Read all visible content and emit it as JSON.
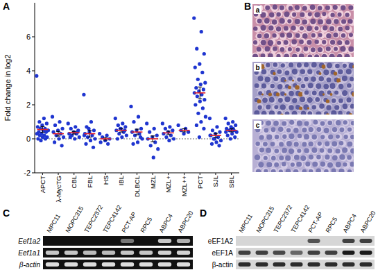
{
  "chart_data": {
    "type": "scatter",
    "panel_label": "A",
    "y_label": "Fold change in log2",
    "categories": [
      "APCT",
      "λ-MycTG",
      "CBL",
      "FBL",
      "HS",
      "IBL",
      "DLBCL",
      "MZL",
      "MZL+",
      "MZL++",
      "PCT",
      "SJL",
      "SBL"
    ],
    "values": [
      [
        3.7,
        1.2,
        1.0,
        0.9,
        0.8,
        0.7,
        0.6,
        0.6,
        0.5,
        0.5,
        0.4,
        0.4,
        0.3,
        0.3,
        0.2,
        0.2,
        0.1,
        0.1,
        0.0,
        0.0,
        -0.1,
        0.5
      ],
      [
        1.3,
        1.0,
        0.8,
        0.6,
        0.5,
        0.4,
        0.3,
        0.2,
        0.1,
        0.0,
        -0.2,
        -0.4
      ],
      [
        0.9,
        0.7,
        0.6,
        0.5,
        0.4,
        0.3,
        0.3,
        0.2,
        0.1,
        0.0,
        0.1,
        0.4
      ],
      [
        2.6,
        1.0,
        0.7,
        0.5,
        0.4,
        0.3,
        0.2,
        0.1,
        0.0,
        -0.1,
        -0.3,
        -0.5,
        0.6,
        0.2
      ],
      [
        0.3,
        0.2,
        0.1,
        0.0,
        -0.1,
        -0.2,
        -0.3
      ],
      [
        1.2,
        0.9,
        0.8,
        0.7,
        0.6,
        0.5,
        0.4,
        0.3,
        0.2,
        0.1,
        0.0,
        0.5,
        0.6
      ],
      [
        1.9,
        1.3,
        1.0,
        0.6,
        0.5,
        0.4,
        0.3,
        0.2,
        0.0,
        -0.2,
        -0.3,
        0.1
      ],
      [
        0.9,
        0.6,
        0.4,
        0.2,
        0.1,
        0.0,
        -0.2,
        -0.4,
        -0.6,
        -1.1
      ],
      [
        0.9,
        0.7,
        0.6,
        0.5,
        0.4,
        0.3,
        0.2,
        0.1,
        0.0,
        -0.1
      ],
      [
        0.8,
        0.6,
        0.5,
        0.4,
        0.3
      ],
      [
        7.1,
        6.3,
        5.3,
        5.0,
        4.4,
        4.2,
        3.9,
        3.5,
        3.3,
        3.2,
        3.0,
        2.9,
        2.8,
        2.7,
        2.6,
        2.5,
        2.3,
        2.2,
        2.0,
        1.8,
        1.5,
        1.3,
        1.0,
        0.8,
        0.6,
        0.1
      ],
      [
        1.2,
        0.7,
        0.5,
        0.4,
        0.3,
        0.2,
        0.1,
        0.0,
        -0.1,
        -0.2,
        -0.3,
        -0.4,
        0.0,
        0.2
      ],
      [
        1.2,
        1.0,
        0.9,
        0.8,
        0.7,
        0.6,
        0.5,
        0.5,
        0.4,
        0.3,
        0.2,
        0.1,
        0.0,
        0.4,
        0.6
      ]
    ],
    "mean": [
      0.55,
      0.3,
      0.36,
      0.3,
      0.0,
      0.5,
      0.4,
      0.0,
      0.35,
      0.5,
      2.7,
      0.2,
      0.5
    ],
    "sem": [
      0.17,
      0.14,
      0.08,
      0.2,
      0.08,
      0.1,
      0.17,
      0.17,
      0.1,
      0.09,
      0.35,
      0.12,
      0.09
    ],
    "color": "#1f35d0",
    "baseline": 0,
    "ylim": [
      -2,
      8
    ],
    "yticks": [
      -2,
      0,
      2,
      4,
      6
    ]
  },
  "histology": {
    "panel_label": "B",
    "labels": [
      "a",
      "b",
      "c"
    ]
  },
  "gel": {
    "panel_label": "C",
    "lanes": [
      "MPC11",
      "MOPC315",
      "TEPC2372",
      "TEPC4142",
      "PCT-AP",
      "RPC5",
      "ABPC4",
      "ABPC20"
    ],
    "rows": [
      {
        "label": "Eef1a2",
        "bands": [
          0,
          0,
          0,
          0,
          0.45,
          0,
          0.8,
          0.7
        ]
      },
      {
        "label": "Eef1a1",
        "bands": [
          0.8,
          0.8,
          0.75,
          0.75,
          0.8,
          0.8,
          0.85,
          0.85
        ]
      },
      {
        "label": "β-actin",
        "bands": [
          0.9,
          0.9,
          0.9,
          0.9,
          0.9,
          0.9,
          0.9,
          0.9
        ]
      }
    ]
  },
  "western": {
    "panel_label": "D",
    "lanes": [
      "MPC11",
      "MOPC315",
      "TEPC2372",
      "TEPC4142",
      "PCT-AP",
      "RPC5",
      "ABPC4",
      "ABPC20"
    ],
    "rows": [
      {
        "label": "eEF1A2",
        "bands": [
          0,
          0,
          0,
          0,
          0.7,
          0,
          0.8,
          0.8
        ]
      },
      {
        "label": "eEF1A",
        "bands": [
          0.8,
          0.8,
          0.75,
          0.6,
          0.8,
          0.8,
          1,
          1
        ]
      },
      {
        "label": "β-actin",
        "bands": [
          0.9,
          0.9,
          0.9,
          0.9,
          0.9,
          0.9,
          0.9,
          0.9
        ]
      }
    ]
  }
}
